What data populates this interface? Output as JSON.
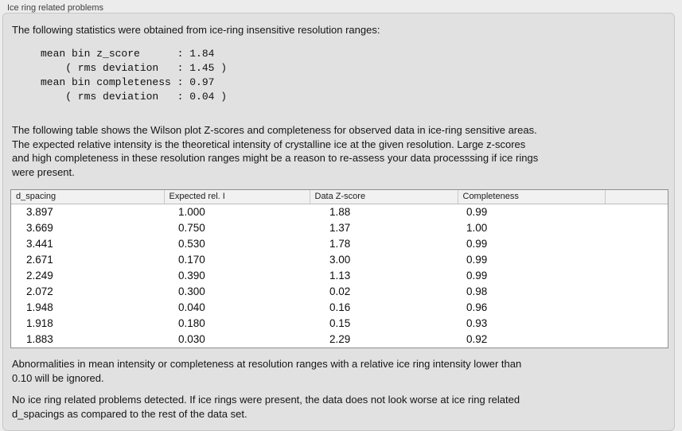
{
  "panel": {
    "title": "Ice ring related problems"
  },
  "intro": "The following statistics were obtained from ice-ring insensitive resolution ranges:",
  "stats_block": "mean bin z_score      : 1.84\n    ( rms deviation   : 1.45 )\nmean bin completeness : 0.97\n    ( rms deviation   : 0.04 )",
  "stats": {
    "mean_bin_z_score": "1.84",
    "z_score_rms_deviation": "1.45",
    "mean_bin_completeness": "0.97",
    "completeness_rms_deviation": "0.04"
  },
  "table_note": "The following table shows the Wilson plot Z-scores and completeness for observed data in ice-ring sensitive areas.\nThe expected relative intensity is the theoretical intensity of crystalline ice at the given resolution. Large z-scores\nand high completeness in these resolution ranges might be a reason to re-assess your data processsing if ice rings\nwere present.",
  "table": {
    "columns": [
      "d_spacing",
      "Expected rel. I",
      "Data Z-score",
      "Completeness",
      ""
    ],
    "rows": [
      [
        "3.897",
        "1.000",
        "1.88",
        "0.99"
      ],
      [
        "3.669",
        "0.750",
        "1.37",
        "1.00"
      ],
      [
        "3.441",
        "0.530",
        "1.78",
        "0.99"
      ],
      [
        "2.671",
        "0.170",
        "3.00",
        "0.99"
      ],
      [
        "2.249",
        "0.390",
        "1.13",
        "0.99"
      ],
      [
        "2.072",
        "0.300",
        "0.02",
        "0.98"
      ],
      [
        "1.948",
        "0.040",
        "0.16",
        "0.96"
      ],
      [
        "1.918",
        "0.180",
        "0.15",
        "0.93"
      ],
      [
        "1.883",
        "0.030",
        "2.29",
        "0.92"
      ]
    ]
  },
  "footnote_ignore": "Abnormalities in mean intensity or completeness at resolution ranges with a relative ice ring intensity lower than\n0.10 will be ignored.",
  "conclusion": "No ice ring related problems detected. If ice rings were present, the data does not look worse at ice ring related\nd_spacings as compared to the rest of the data set.",
  "colors": {
    "page_background": "#ececec",
    "groupbox_background": "#e1e1e1",
    "groupbox_border": "#c7c7c7",
    "table_background": "#ffffff",
    "table_border": "#8f8f8f",
    "header_background": "#f1f1f1",
    "text": "#141414"
  }
}
